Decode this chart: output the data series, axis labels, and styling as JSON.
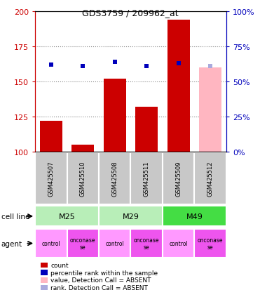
{
  "title": "GDS3759 / 209962_at",
  "samples": [
    "GSM425507",
    "GSM425510",
    "GSM425508",
    "GSM425511",
    "GSM425509",
    "GSM425512"
  ],
  "count_values": [
    122,
    105,
    152,
    132,
    194,
    null
  ],
  "rank_values": [
    162,
    161,
    164,
    161,
    163,
    null
  ],
  "absent_count": [
    null,
    null,
    null,
    null,
    null,
    160
  ],
  "absent_rank": [
    null,
    null,
    null,
    null,
    null,
    161
  ],
  "ylim_left": [
    100,
    200
  ],
  "ylim_right": [
    0,
    100
  ],
  "yticks_left": [
    100,
    125,
    150,
    175,
    200
  ],
  "yticks_right": [
    0,
    25,
    50,
    75,
    100
  ],
  "cell_line_configs": [
    {
      "label": "M25",
      "start": 0,
      "end": 1,
      "color": "#B8EEB8"
    },
    {
      "label": "M29",
      "start": 2,
      "end": 3,
      "color": "#B8EEB8"
    },
    {
      "label": "M49",
      "start": 4,
      "end": 5,
      "color": "#44DD44"
    }
  ],
  "agents": [
    "control",
    "onconase\nse",
    "control",
    "onconase\nse",
    "control",
    "onconase\nse"
  ],
  "agent_control_color": "#FF99FF",
  "agent_onconase_color": "#EE55EE",
  "bar_color_present": "#CC0000",
  "bar_color_absent": "#FFB6C1",
  "rank_color_present": "#0000BB",
  "rank_color_absent": "#AAAADD",
  "grid_color": "#888888",
  "left_axis_color": "#CC0000",
  "right_axis_color": "#0000BB",
  "sample_bg_color": "#C8C8C8",
  "legend_items": [
    {
      "color": "#CC0000",
      "label": "count"
    },
    {
      "color": "#0000BB",
      "label": "percentile rank within the sample"
    },
    {
      "color": "#FFB6C1",
      "label": "value, Detection Call = ABSENT"
    },
    {
      "color": "#AAAADD",
      "label": "rank, Detection Call = ABSENT"
    }
  ]
}
